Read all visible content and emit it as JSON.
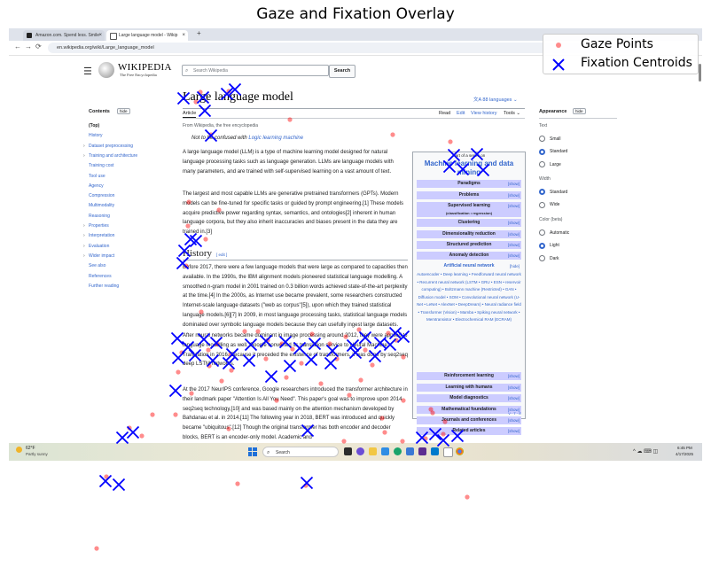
{
  "figure": {
    "title": "Gaze and Fixation Overlay",
    "legend": {
      "gaze_label": "Gaze Points",
      "fixation_label": "Fixation Centroids",
      "gaze_color": "#ff0000",
      "fixation_color": "#0000ff"
    }
  },
  "browser": {
    "tabs": [
      {
        "label": "Amazon.com. Spend less. Smile",
        "active": false
      },
      {
        "label": "Large language model - Wikip",
        "active": true
      }
    ],
    "new_tab": "+",
    "url": "en.wikipedia.org/wiki/Large_language_model"
  },
  "wiki": {
    "wordmark": "WIKIPEDIA",
    "tagline": "The Free Encyclopedia",
    "search_placeholder": "Search Wikipedia",
    "search_button": "Search",
    "page_title": "Large language model",
    "languages": "88 languages",
    "tabs": {
      "article": "Article",
      "read": "Read",
      "edit": "Edit",
      "history": "View history",
      "tools": "Tools"
    },
    "contents_heading": "Contents",
    "hide": "hide",
    "toc": [
      {
        "label": "(Top)",
        "top": true,
        "caret": false
      },
      {
        "label": "History",
        "caret": false
      },
      {
        "label": "Dataset preprocessing",
        "caret": true
      },
      {
        "label": "Training and architecture",
        "caret": true
      },
      {
        "label": "Training cost",
        "caret": false
      },
      {
        "label": "Tool use",
        "caret": false
      },
      {
        "label": "Agency",
        "caret": false
      },
      {
        "label": "Compression",
        "caret": false
      },
      {
        "label": "Multimodality",
        "caret": false
      },
      {
        "label": "Reasoning",
        "caret": false
      },
      {
        "label": "Properties",
        "caret": true
      },
      {
        "label": "Interpretation",
        "caret": true
      },
      {
        "label": "Evaluation",
        "caret": true
      },
      {
        "label": "Wider impact",
        "caret": true
      },
      {
        "label": "See also",
        "caret": false
      },
      {
        "label": "References",
        "caret": false
      },
      {
        "label": "Further reading",
        "caret": false
      }
    ],
    "from": "From Wikipedia, the free encyclopedia",
    "hatnote_prefix": "Not to be confused with ",
    "hatnote_link": "Logic learning machine",
    "para1": "A large language model (LLM) is a type of machine learning model designed for natural language processing tasks such as language generation. LLMs are language models with many parameters, and are trained with self-supervised learning on a vast amount of text.",
    "para2": "The largest and most capable LLMs are generative pretrained transformers (GPTs). Modern models can be fine-tuned for specific tasks or guided by prompt engineering.[1] These models acquire predictive power regarding syntax, semantics, and ontologies[2] inherent in human language corpora, but they also inherit inaccuracies and biases present in the data they are trained in.[3]",
    "history_heading": "History",
    "edit_link": "edit",
    "para3": "Before 2017, there were a few language models that were large as compared to capacities then available. In the 1990s, the IBM alignment models pioneered statistical language modelling. A smoothed n-gram model in 2001 trained on 0.3 billion words achieved state-of-the-art perplexity at the time.[4] In the 2000s, as Internet use became prevalent, some researchers constructed Internet-scale language datasets (\"web as corpus\"[5]), upon which they trained statistical language models.[6][7] In 2009, in most language processing tasks, statistical language models dominated over symbolic language models because they can usefully ingest large datasets.",
    "para4": "After neural networks became dominant in image processing around 2012, they were applied to language modelling as well. Google converted its translation service to Neural Machine Translation in 2016. Because it preceded the existence of transformers, it was done by seq2seq deep LSTM networks.",
    "para5": "At the 2017 NeurIPS conference, Google researchers introduced the transformer architecture in their landmark paper \"Attention Is All You Need\". This paper's goal was to improve upon 2014 seq2seq technology,[10] and was based mainly on the attention mechanism developed by Bahdanau et al. in 2014.[11] The following year in 2018, BERT was introduced and quickly became \"ubiquitous\".[12] Though the original transformer has both encoder and decoder blocks, BERT is an encoder-only model. Academic and",
    "navbox": {
      "part_of": "Part of a series on",
      "title": "Machine learning and data mining",
      "show": "show",
      "hide": "hide",
      "vte": "V · T · E",
      "rows_top": [
        "Paradigms",
        "Problems",
        "Supervised learning",
        "Clustering",
        "Dimensionality reduction",
        "Structured prediction",
        "Anomaly detection"
      ],
      "supervised_sub": "(classification • regression)",
      "ann_title": "Artificial neural network",
      "ann_links": "Autoencoder • Deep learning • Feedforward neural network • Recurrent neural network (LSTM • GRU • ESN • reservoir computing) • Boltzmann machine (Restricted) • GAN • Diffusion model • SOM • Convolutional neural network (U-Net • LeNet • AlexNet • DeepDream) • Neural radiance field • Transformer (Vision) • Mamba • Spiking neural network • Memtransistor • Electrochemical RAM (ECRAM)",
      "rows_bottom": [
        "Reinforcement learning",
        "Learning with humans",
        "Model diagnostics",
        "Mathematical foundations",
        "Journals and conferences",
        "Related articles"
      ]
    },
    "appearance": {
      "heading": "Appearance",
      "text_label": "Text",
      "text_options": [
        "Small",
        "Standard",
        "Large"
      ],
      "text_selected": 1,
      "width_label": "Width",
      "width_options": [
        "Standard",
        "Wide"
      ],
      "width_selected": 0,
      "color_label": "Color (beta)",
      "color_options": [
        "Automatic",
        "Light",
        "Dark"
      ],
      "color_selected": 1
    }
  },
  "taskbar": {
    "temperature": "62°F",
    "condition": "Partly sunny",
    "search_label": "Search",
    "time": "6:45 PM",
    "date": "4/17/2025"
  }
}
